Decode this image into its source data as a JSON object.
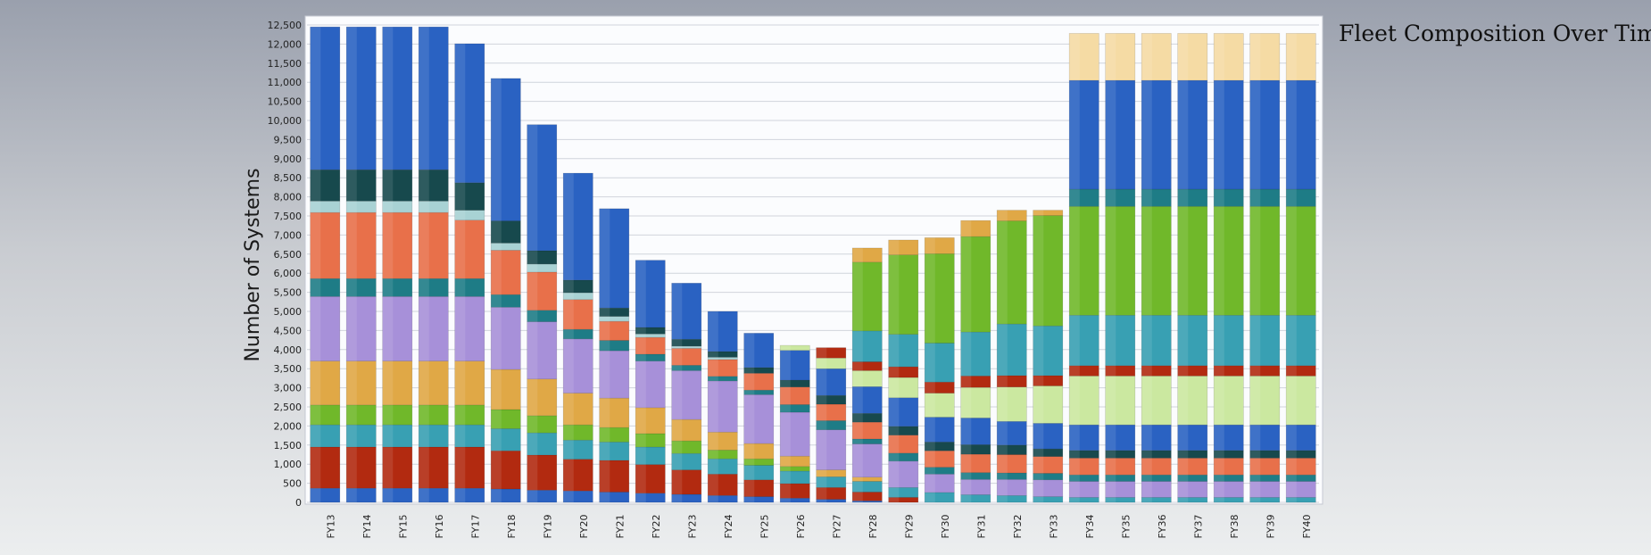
{
  "chart_data": {
    "type": "bar",
    "stacked": true,
    "title": "Fleet Composition Over Time",
    "xlabel": "",
    "ylabel": "Number of Systems",
    "ylim": [
      0,
      12500
    ],
    "y_tick_step": 500,
    "grid": true,
    "legend": "none",
    "categories": [
      "FY13",
      "FY14",
      "FY15",
      "FY16",
      "FY17",
      "FY18",
      "FY19",
      "FY20",
      "FY21",
      "FY22",
      "FY23",
      "FY24",
      "FY25",
      "FY26",
      "FY27",
      "FY28",
      "FY29",
      "FY30",
      "FY31",
      "FY32",
      "FY33",
      "FY34",
      "FY35",
      "FY36",
      "FY37",
      "FY38",
      "FY39",
      "FY40"
    ],
    "series": [
      {
        "color": "#2a62c2",
        "values": [
          370,
          370,
          370,
          370,
          370,
          350,
          320,
          300,
          270,
          240,
          210,
          180,
          150,
          110,
          80,
          40,
          0,
          0,
          0,
          0,
          0,
          0,
          0,
          0,
          0,
          0,
          0,
          0
        ]
      },
      {
        "color": "#b22a10",
        "values": [
          1080,
          1080,
          1080,
          1080,
          1080,
          1000,
          920,
          830,
          830,
          750,
          640,
          560,
          440,
          380,
          310,
          230,
          130,
          0,
          0,
          0,
          0,
          0,
          0,
          0,
          0,
          0,
          0,
          0
        ]
      },
      {
        "color": "#38a0b3",
        "values": [
          580,
          580,
          580,
          580,
          580,
          580,
          580,
          500,
          480,
          460,
          430,
          400,
          380,
          330,
          280,
          280,
          260,
          260,
          200,
          180,
          150,
          130,
          130,
          130,
          130,
          130,
          130,
          130
        ]
      },
      {
        "color": "#70b82a",
        "values": [
          520,
          520,
          520,
          520,
          520,
          500,
          450,
          400,
          380,
          350,
          330,
          230,
          170,
          120,
          0,
          0,
          0,
          0,
          0,
          0,
          0,
          0,
          0,
          0,
          0,
          0,
          0,
          0
        ]
      },
      {
        "color": "#e0a846",
        "values": [
          1150,
          1150,
          1150,
          1150,
          1150,
          1050,
          960,
          830,
          770,
          680,
          560,
          470,
          400,
          270,
          180,
          110,
          0,
          0,
          0,
          0,
          0,
          0,
          0,
          0,
          0,
          0,
          0,
          0
        ]
      },
      {
        "color": "#a790d9",
        "values": [
          1690,
          1690,
          1690,
          1690,
          1690,
          1630,
          1500,
          1420,
          1240,
          1220,
          1280,
          1340,
          1280,
          1150,
          1050,
          870,
          690,
          480,
          400,
          420,
          440,
          420,
          420,
          420,
          420,
          420,
          420,
          420
        ]
      },
      {
        "color": "#1e7c86",
        "values": [
          470,
          470,
          470,
          470,
          470,
          330,
          300,
          250,
          270,
          180,
          140,
          120,
          120,
          200,
          240,
          130,
          210,
          180,
          180,
          170,
          170,
          170,
          170,
          170,
          170,
          170,
          170,
          170
        ]
      },
      {
        "color": "#e8704a",
        "values": [
          1730,
          1730,
          1730,
          1730,
          1530,
          1160,
          1000,
          780,
          500,
          440,
          440,
          440,
          440,
          460,
          430,
          440,
          470,
          430,
          480,
          480,
          440,
          440,
          440,
          440,
          440,
          440,
          440,
          440
        ]
      },
      {
        "color": "#a8d2d4",
        "values": [
          300,
          300,
          300,
          300,
          260,
          190,
          210,
          180,
          130,
          90,
          60,
          60,
          0,
          0,
          0,
          0,
          0,
          0,
          0,
          0,
          0,
          0,
          0,
          0,
          0,
          0,
          0,
          0
        ]
      },
      {
        "color": "#17494d",
        "values": [
          820,
          820,
          820,
          820,
          720,
          580,
          350,
          330,
          220,
          170,
          180,
          150,
          150,
          180,
          230,
          230,
          230,
          230,
          250,
          250,
          200,
          200,
          200,
          200,
          200,
          200,
          200,
          200
        ]
      },
      {
        "color": "#2a62c2",
        "values": [
          3740,
          3740,
          3740,
          3740,
          3640,
          3730,
          3300,
          2800,
          2600,
          1760,
          1470,
          1050,
          900,
          780,
          700,
          700,
          750,
          650,
          700,
          620,
          670,
          670,
          670,
          670,
          670,
          670,
          670,
          670
        ]
      },
      {
        "color": "#cbe8a0",
        "values": [
          0,
          0,
          0,
          0,
          0,
          0,
          0,
          0,
          0,
          0,
          0,
          0,
          0,
          130,
          280,
          420,
          530,
          630,
          800,
          900,
          980,
          1280,
          1280,
          1280,
          1280,
          1280,
          1280,
          1280
        ]
      },
      {
        "color": "#b22a10",
        "values": [
          0,
          0,
          0,
          0,
          0,
          0,
          0,
          0,
          0,
          0,
          0,
          0,
          0,
          0,
          270,
          230,
          280,
          290,
          300,
          300,
          270,
          270,
          270,
          270,
          270,
          270,
          270,
          270
        ]
      },
      {
        "color": "#38a0b3",
        "values": [
          0,
          0,
          0,
          0,
          0,
          0,
          0,
          0,
          0,
          0,
          0,
          0,
          0,
          0,
          0,
          810,
          850,
          1020,
          1150,
          1350,
          1300,
          1320,
          1320,
          1320,
          1320,
          1320,
          1320,
          1320
        ]
      },
      {
        "color": "#70b82a",
        "values": [
          0,
          0,
          0,
          0,
          0,
          0,
          0,
          0,
          0,
          0,
          0,
          0,
          0,
          0,
          0,
          1800,
          2080,
          2340,
          2500,
          2700,
          2890,
          2850,
          2850,
          2850,
          2850,
          2850,
          2850,
          2850
        ]
      },
      {
        "color": "#e0a846",
        "values": [
          0,
          0,
          0,
          0,
          0,
          0,
          0,
          0,
          0,
          0,
          0,
          0,
          0,
          0,
          0,
          370,
          390,
          420,
          420,
          280,
          140,
          0,
          0,
          0,
          0,
          0,
          0,
          0
        ]
      },
      {
        "color": "#2a62c2",
        "values": [
          0,
          0,
          0,
          0,
          0,
          0,
          0,
          0,
          0,
          0,
          0,
          0,
          0,
          0,
          0,
          0,
          0,
          0,
          0,
          0,
          0,
          0,
          0,
          0,
          0,
          0,
          0,
          0
        ]
      },
      {
        "color": "#1e7c86",
        "values": [
          0,
          0,
          0,
          0,
          0,
          0,
          0,
          0,
          0,
          0,
          0,
          0,
          0,
          0,
          0,
          0,
          0,
          0,
          0,
          0,
          0,
          450,
          450,
          450,
          450,
          450,
          450,
          450
        ]
      },
      {
        "color": "#2a62c2",
        "values": [
          0,
          0,
          0,
          0,
          0,
          0,
          0,
          0,
          0,
          0,
          0,
          0,
          0,
          0,
          0,
          0,
          0,
          0,
          0,
          0,
          0,
          2850,
          2850,
          2850,
          2850,
          2850,
          2850,
          2850
        ]
      },
      {
        "color": "#f5dba4",
        "values": [
          0,
          0,
          0,
          0,
          0,
          0,
          0,
          0,
          0,
          0,
          0,
          0,
          0,
          0,
          0,
          0,
          0,
          0,
          0,
          0,
          0,
          1230,
          1230,
          1230,
          1230,
          1230,
          1230,
          1230
        ]
      }
    ]
  }
}
